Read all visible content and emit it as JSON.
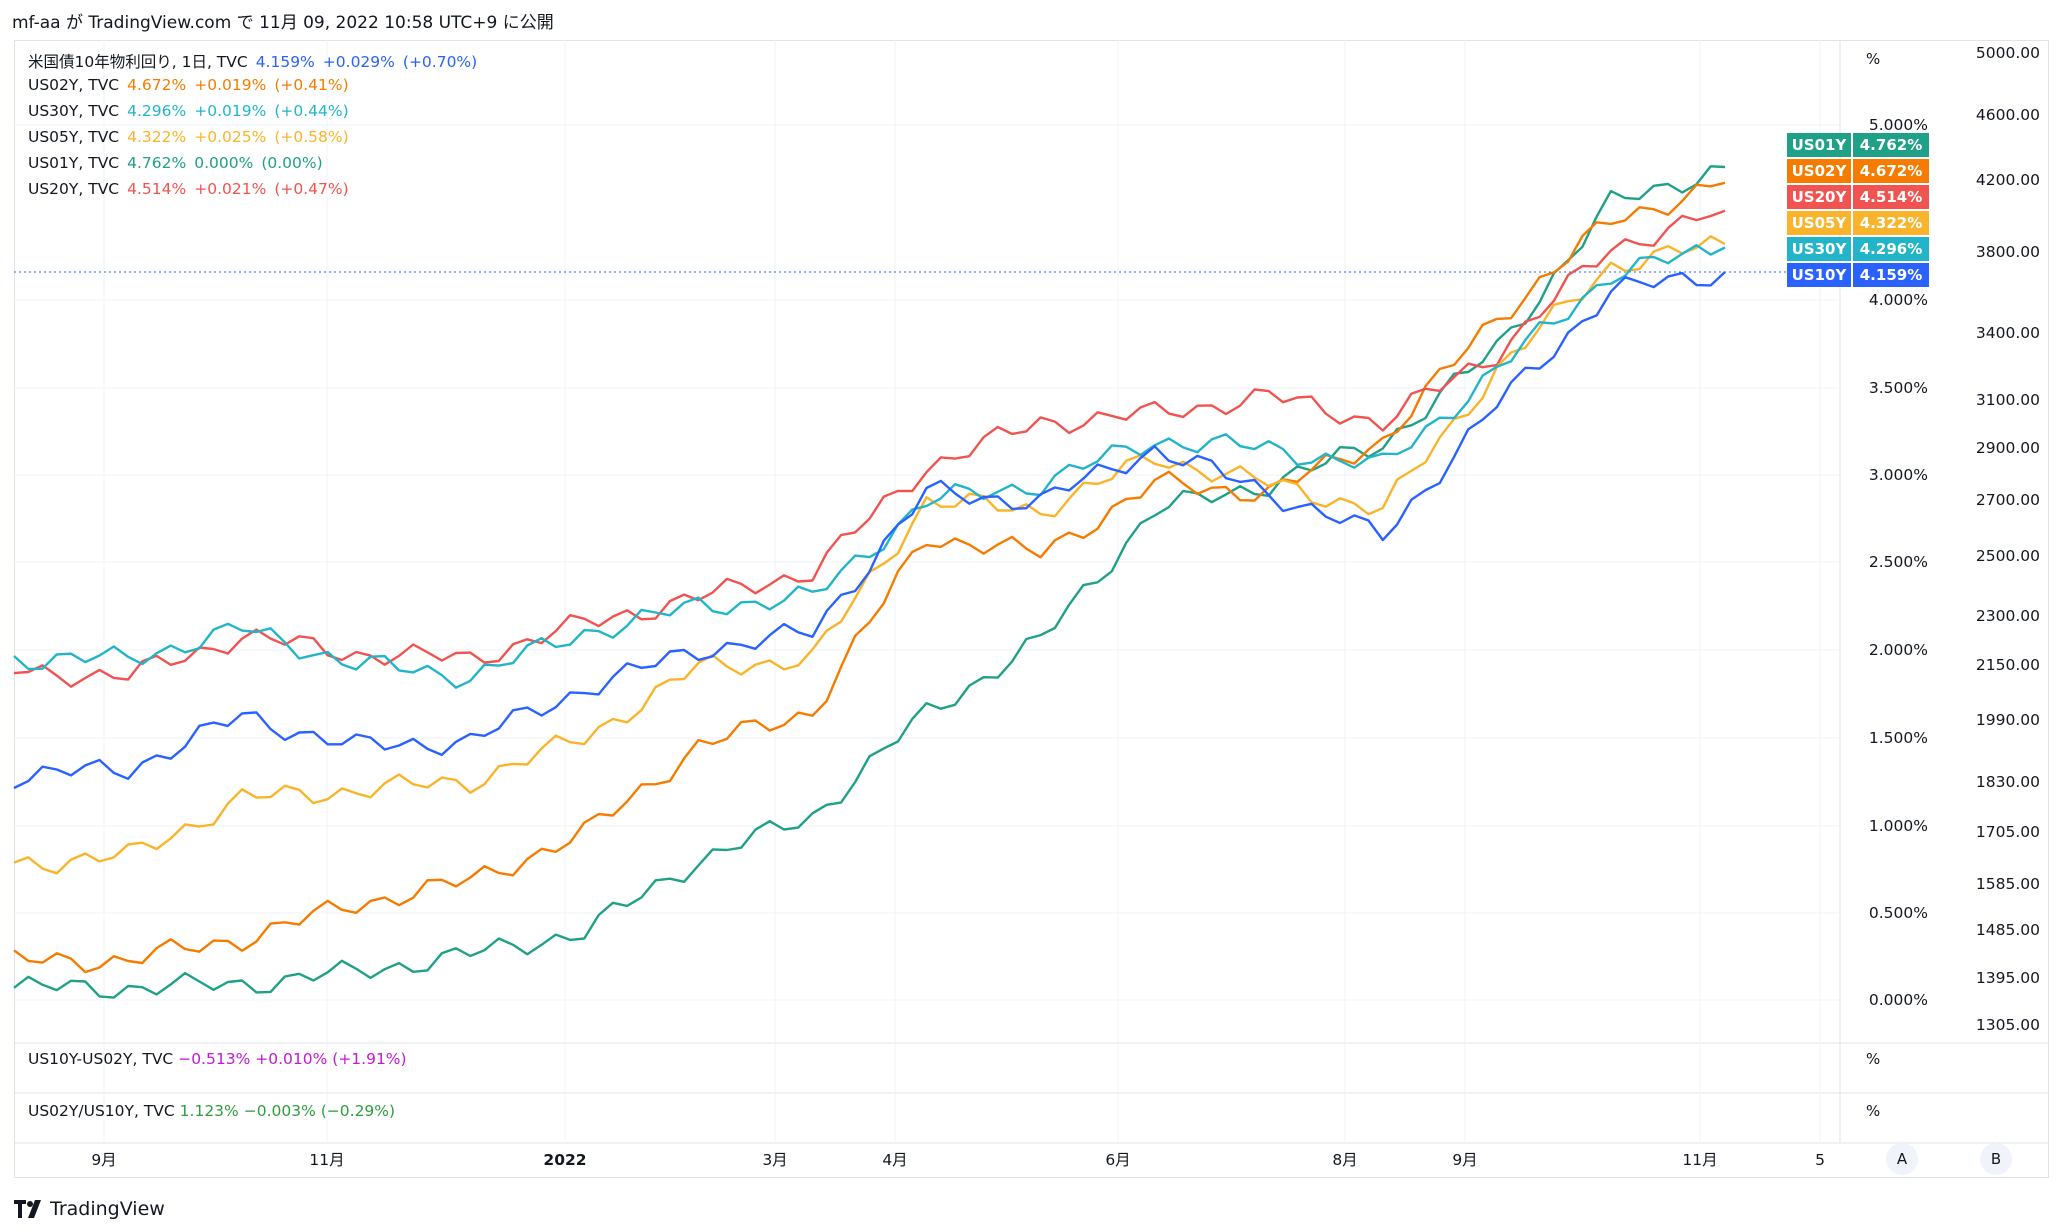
{
  "header": {
    "text": "mf-aa が TradingView.com で 11月 09, 2022 10:58 UTC+9 に公開"
  },
  "legend": [
    {
      "label": "米国債10年物利回り, 1日, TVC",
      "value": "4.159%",
      "change": "+0.029%",
      "pct": "(+0.70%)",
      "color": "#2962ff"
    },
    {
      "label": "US02Y, TVC",
      "value": "4.672%",
      "change": "+0.019%",
      "pct": "(+0.41%)",
      "color": "#f57c00"
    },
    {
      "label": "US30Y, TVC",
      "value": "4.296%",
      "change": "+0.019%",
      "pct": "(+0.44%)",
      "color": "#22b5c9"
    },
    {
      "label": "US05Y, TVC",
      "value": "4.322%",
      "change": "+0.025%",
      "pct": "(+0.58%)",
      "color": "#f9b42b"
    },
    {
      "label": "US01Y, TVC",
      "value": "4.762%",
      "change": "0.000%",
      "pct": "(0.00%)",
      "color": "#1fa187"
    },
    {
      "label": "US20Y, TVC",
      "value": "4.514%",
      "change": "+0.021%",
      "pct": "(+0.47%)",
      "color": "#f05350"
    }
  ],
  "panes": [
    {
      "label": "US10Y-US02Y, TVC",
      "value": "−0.513%",
      "change": "+0.010%",
      "pct": "(+1.91%)",
      "color": "#c218d6",
      "unit": "%"
    },
    {
      "label": "US02Y/US10Y, TVC",
      "value": "1.123%",
      "change": "−0.003%",
      "pct": "(−0.29%)",
      "color": "#2e9e3e",
      "unit": "%"
    }
  ],
  "axis_unit": "%",
  "pct_axis": [
    "5.000%",
    "4.000%",
    "3.500%",
    "3.000%",
    "2.500%",
    "2.000%",
    "1.500%",
    "1.000%",
    "0.500%",
    "0.000%"
  ],
  "right_axis": [
    "5000.00",
    "4600.00",
    "4200.00",
    "3800.00",
    "3400.00",
    "3100.00",
    "2900.00",
    "2700.00",
    "2500.00",
    "2300.00",
    "2150.00",
    "1990.00",
    "1830.00",
    "1705.00",
    "1585.00",
    "1485.00",
    "1395.00",
    "1305.00"
  ],
  "time_axis": [
    "9月",
    "11月",
    "2022",
    "3月",
    "4月",
    "6月",
    "8月",
    "9月",
    "11月",
    "5"
  ],
  "buttons": {
    "a": "A",
    "b": "B"
  },
  "footer": {
    "brand": "TradingView"
  },
  "chart_data": {
    "type": "line",
    "title": "米国債10年物利回り, 1日, TVC",
    "x": [
      "2021-08",
      "2021-09",
      "2021-10",
      "2021-11",
      "2021-12",
      "2022-01",
      "2022-02",
      "2022-03",
      "2022-04",
      "2022-05",
      "2022-06",
      "2022-07",
      "2022-08",
      "2022-09",
      "2022-10",
      "2022-11"
    ],
    "ylim": [
      0,
      5.0
    ],
    "y_unit": "%",
    "series": [
      {
        "name": "US01Y",
        "color": "#1fa187",
        "last": "4.762%",
        "values": [
          0.07,
          0.07,
          0.09,
          0.16,
          0.26,
          0.39,
          0.8,
          1.05,
          1.64,
          2.05,
          2.8,
          2.95,
          3.18,
          3.72,
          4.55,
          4.76
        ]
      },
      {
        "name": "US02Y",
        "color": "#f57c00",
        "last": "4.672%",
        "values": [
          0.22,
          0.23,
          0.35,
          0.55,
          0.68,
          0.95,
          1.45,
          1.65,
          2.65,
          2.55,
          2.95,
          2.9,
          3.2,
          3.9,
          4.45,
          4.67
        ]
      },
      {
        "name": "US20Y",
        "color": "#f05350",
        "last": "4.514%",
        "values": [
          1.88,
          1.85,
          2.08,
          1.98,
          1.95,
          2.15,
          2.3,
          2.45,
          3.05,
          3.3,
          3.35,
          3.45,
          3.3,
          3.7,
          4.3,
          4.51
        ]
      },
      {
        "name": "US05Y",
        "color": "#f9b42b",
        "last": "4.322%",
        "values": [
          0.78,
          0.82,
          1.15,
          1.2,
          1.25,
          1.5,
          1.9,
          1.95,
          2.85,
          2.8,
          3.1,
          2.95,
          2.8,
          3.6,
          4.2,
          4.32
        ]
      },
      {
        "name": "US30Y",
        "color": "#22b5c9",
        "last": "4.296%",
        "values": [
          1.95,
          1.95,
          2.12,
          1.92,
          1.85,
          2.1,
          2.25,
          2.3,
          2.85,
          2.95,
          3.2,
          3.15,
          3.05,
          3.6,
          4.15,
          4.3
        ]
      },
      {
        "name": "US10Y",
        "color": "#2962ff",
        "last": "4.159%",
        "values": [
          1.28,
          1.32,
          1.62,
          1.45,
          1.48,
          1.78,
          2.0,
          2.1,
          2.9,
          2.85,
          3.15,
          2.9,
          2.65,
          3.4,
          4.05,
          4.16
        ]
      }
    ]
  }
}
